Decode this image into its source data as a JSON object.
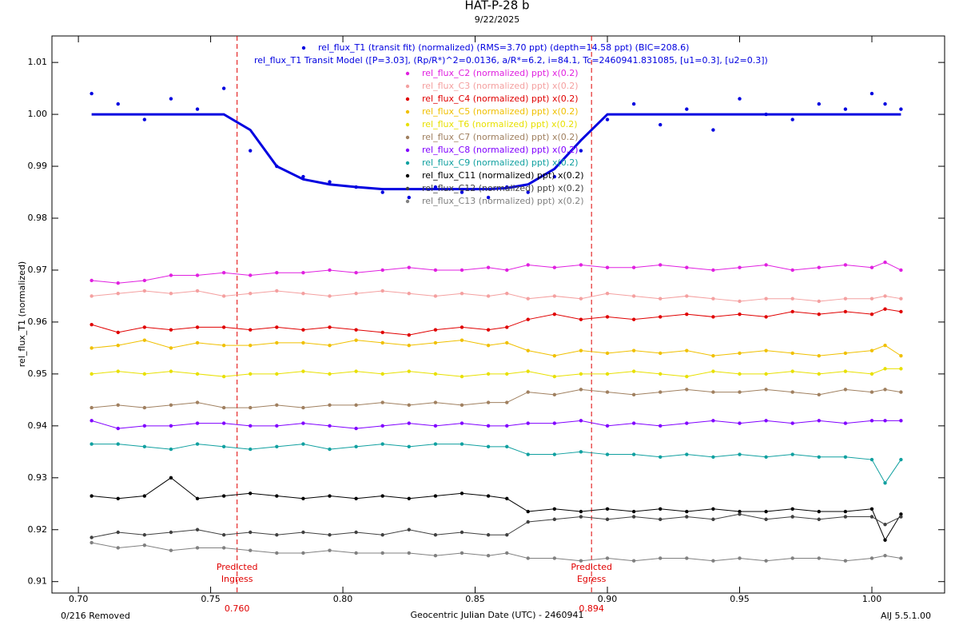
{
  "chart_data": {
    "type": "line",
    "title": "HAT-P-28 b",
    "subtitle": "9/22/2025",
    "x_label": "Geocentric Julian Date (UTC) - 2460941",
    "y_label": "rel_flux_T1 (normalized)",
    "footer_left": "0/216 Removed",
    "footer_right": "AIJ 5.5.1.00",
    "xlim": [
      0.69,
      1.0275
    ],
    "ylim": [
      0.9078,
      1.0151
    ],
    "xticks": [
      {
        "value": 0.7,
        "label": "0.70"
      },
      {
        "value": 0.75,
        "label": "0.75"
      },
      {
        "value": 0.8,
        "label": "0.80"
      },
      {
        "value": 0.85,
        "label": "0.85"
      },
      {
        "value": 0.9,
        "label": "0.90"
      },
      {
        "value": 0.95,
        "label": "0.95"
      },
      {
        "value": 1.0,
        "label": "1.00"
      }
    ],
    "yticks": [
      0.91,
      0.92,
      0.93,
      0.94,
      0.95,
      0.96,
      0.97,
      0.98,
      0.99,
      {
        "value": 1.0,
        "label": "1.00"
      },
      1.01
    ],
    "annotations": [
      {
        "x": 0.76,
        "x_label": "0.760",
        "lines": [
          "Predicted",
          "Ingress"
        ],
        "color": "#e00000"
      },
      {
        "x": 0.894,
        "x_label": "0.894",
        "lines": [
          "Predicted",
          "Egress"
        ],
        "color": "#e00000"
      }
    ],
    "x": [
      0.705,
      0.715,
      0.725,
      0.735,
      0.745,
      0.755,
      0.765,
      0.775,
      0.785,
      0.795,
      0.805,
      0.815,
      0.825,
      0.835,
      0.845,
      0.855,
      0.862,
      0.87,
      0.88,
      0.89,
      0.9,
      0.91,
      0.92,
      0.93,
      0.94,
      0.95,
      0.96,
      0.97,
      0.98,
      0.99,
      1.0,
      1.005,
      1.011
    ],
    "series": [
      {
        "name": "rel_flux_T1 (transit fit) (normalized) (RMS=3.70 ppt) (depth=14.58 ppt) (BIC=208.6)",
        "color": "#0000e0",
        "style": "markers",
        "legend_marker": true,
        "values": [
          1.004,
          1.002,
          0.999,
          1.003,
          1.001,
          1.005,
          0.993,
          0.99,
          0.988,
          0.987,
          0.986,
          0.985,
          0.984,
          0.986,
          0.985,
          0.984,
          0.986,
          0.985,
          0.988,
          0.993,
          0.999,
          1.002,
          0.998,
          1.001,
          0.997,
          1.003,
          1.0,
          0.999,
          1.002,
          1.001,
          1.004,
          1.002,
          1.001
        ]
      },
      {
        "name": "rel_flux_T1 Transit Model ([P=3.03], (Rp/R*)^2=0.0136, a/R*=6.2, i=84.1, Tc=2460941.831085, [u1=0.3], [u2=0.3])",
        "color": "#0000e0",
        "style": "line",
        "legend_marker": false,
        "values": [
          1,
          1,
          1,
          1,
          1,
          1,
          0.997,
          0.99,
          0.9875,
          0.9865,
          0.986,
          0.9856,
          0.9856,
          0.9856,
          0.9856,
          0.9856,
          0.9858,
          0.9865,
          0.9895,
          0.995,
          1,
          1,
          1,
          1,
          1,
          1,
          1,
          1,
          1,
          1,
          1,
          1,
          1
        ]
      },
      {
        "name": "rel_flux_C2 (normalized) ppt) x(0.2)",
        "color": "#e020e0",
        "style": "line-markers",
        "legend_marker": true,
        "values": [
          0.968,
          0.9675,
          0.968,
          0.969,
          0.969,
          0.9695,
          0.969,
          0.9695,
          0.9695,
          0.97,
          0.9695,
          0.97,
          0.9705,
          0.97,
          0.97,
          0.9705,
          0.97,
          0.971,
          0.9705,
          0.971,
          0.9705,
          0.9705,
          0.971,
          0.9705,
          0.97,
          0.9705,
          0.971,
          0.97,
          0.9705,
          0.971,
          0.9705,
          0.9715,
          0.97
        ]
      },
      {
        "name": "rel_flux_C3 (normalized) ppt) x(0.2)",
        "color": "#f4a0a0",
        "style": "line-markers",
        "legend_marker": true,
        "values": [
          0.965,
          0.9655,
          0.966,
          0.9655,
          0.966,
          0.965,
          0.9655,
          0.966,
          0.9655,
          0.965,
          0.9655,
          0.966,
          0.9655,
          0.965,
          0.9655,
          0.965,
          0.9655,
          0.9645,
          0.965,
          0.9645,
          0.9655,
          0.965,
          0.9645,
          0.965,
          0.9645,
          0.964,
          0.9645,
          0.9645,
          0.964,
          0.9645,
          0.9645,
          0.965,
          0.9645
        ]
      },
      {
        "name": "rel_flux_C4 (normalized) ppt) x(0.2)",
        "color": "#e00000",
        "style": "line-markers",
        "legend_marker": true,
        "values": [
          0.9595,
          0.958,
          0.959,
          0.9585,
          0.959,
          0.959,
          0.9585,
          0.959,
          0.9585,
          0.959,
          0.9585,
          0.958,
          0.9575,
          0.9585,
          0.959,
          0.9585,
          0.959,
          0.9605,
          0.9615,
          0.9605,
          0.961,
          0.9605,
          0.961,
          0.9615,
          0.961,
          0.9615,
          0.961,
          0.962,
          0.9615,
          0.962,
          0.9615,
          0.9625,
          0.962
        ]
      },
      {
        "name": "rel_flux_C5 (normalized) ppt) x(0.2)",
        "color": "#f0c000",
        "style": "line-markers",
        "legend_marker": true,
        "values": [
          0.955,
          0.9555,
          0.9565,
          0.955,
          0.956,
          0.9555,
          0.9555,
          0.956,
          0.956,
          0.9555,
          0.9565,
          0.956,
          0.9555,
          0.956,
          0.9565,
          0.9555,
          0.956,
          0.9545,
          0.9535,
          0.9545,
          0.954,
          0.9545,
          0.954,
          0.9545,
          0.9535,
          0.954,
          0.9545,
          0.954,
          0.9535,
          0.954,
          0.9545,
          0.9555,
          0.9535
        ]
      },
      {
        "name": "rel_flux_T6 (normalized) ppt) x(0.2)",
        "color": "#e8e000",
        "style": "line-markers",
        "legend_marker": true,
        "values": [
          0.95,
          0.9505,
          0.95,
          0.9505,
          0.95,
          0.9495,
          0.95,
          0.95,
          0.9505,
          0.95,
          0.9505,
          0.95,
          0.9505,
          0.95,
          0.9495,
          0.95,
          0.95,
          0.9505,
          0.9495,
          0.95,
          0.95,
          0.9505,
          0.95,
          0.9495,
          0.9505,
          0.95,
          0.95,
          0.9505,
          0.95,
          0.9505,
          0.95,
          0.951,
          0.951
        ]
      },
      {
        "name": "rel_flux_C7 (normalized) ppt) x(0.2)",
        "color": "#a08060",
        "style": "line-markers",
        "legend_marker": true,
        "values": [
          0.9435,
          0.944,
          0.9435,
          0.944,
          0.9445,
          0.9435,
          0.9435,
          0.944,
          0.9435,
          0.944,
          0.944,
          0.9445,
          0.944,
          0.9445,
          0.944,
          0.9445,
          0.9445,
          0.9465,
          0.946,
          0.947,
          0.9465,
          0.946,
          0.9465,
          0.947,
          0.9465,
          0.9465,
          0.947,
          0.9465,
          0.946,
          0.947,
          0.9465,
          0.947,
          0.9465
        ]
      },
      {
        "name": "rel_flux_C8 (normalized) ppt) x(0.2)",
        "color": "#8000ff",
        "style": "line-markers",
        "legend_marker": true,
        "values": [
          0.941,
          0.9395,
          0.94,
          0.94,
          0.9405,
          0.9405,
          0.94,
          0.94,
          0.9405,
          0.94,
          0.9395,
          0.94,
          0.9405,
          0.94,
          0.9405,
          0.94,
          0.94,
          0.9405,
          0.9405,
          0.941,
          0.94,
          0.9405,
          0.94,
          0.9405,
          0.941,
          0.9405,
          0.941,
          0.9405,
          0.941,
          0.9405,
          0.941,
          0.941,
          0.941
        ]
      },
      {
        "name": "rel_flux_C9 (normalized) ppt) x(0.2)",
        "color": "#10a0a0",
        "style": "line-markers",
        "legend_marker": true,
        "values": [
          0.9365,
          0.9365,
          0.936,
          0.9355,
          0.9365,
          0.936,
          0.9355,
          0.936,
          0.9365,
          0.9355,
          0.936,
          0.9365,
          0.936,
          0.9365,
          0.9365,
          0.936,
          0.936,
          0.9345,
          0.9345,
          0.935,
          0.9345,
          0.9345,
          0.934,
          0.9345,
          0.934,
          0.9345,
          0.934,
          0.9345,
          0.934,
          0.934,
          0.9335,
          0.929,
          0.9335
        ]
      },
      {
        "name": "rel_flux_C11 (normalized) ppt) x(0.2)",
        "color": "#000000",
        "style": "line-markers",
        "legend_marker": true,
        "values": [
          0.9265,
          0.926,
          0.9265,
          0.93,
          0.926,
          0.9265,
          0.927,
          0.9265,
          0.926,
          0.9265,
          0.926,
          0.9265,
          0.926,
          0.9265,
          0.927,
          0.9265,
          0.926,
          0.9235,
          0.924,
          0.9235,
          0.924,
          0.9235,
          0.924,
          0.9235,
          0.924,
          0.9235,
          0.9235,
          0.924,
          0.9235,
          0.9235,
          0.924,
          0.918,
          0.923
        ]
      },
      {
        "name": "rel_flux_C12 (normalized) ppt) x(0.2)",
        "color": "#404040",
        "style": "line-markers",
        "legend_marker": true,
        "values": [
          0.9185,
          0.9195,
          0.919,
          0.9195,
          0.92,
          0.919,
          0.9195,
          0.919,
          0.9195,
          0.919,
          0.9195,
          0.919,
          0.92,
          0.919,
          0.9195,
          0.919,
          0.919,
          0.9215,
          0.922,
          0.9225,
          0.922,
          0.9225,
          0.922,
          0.9225,
          0.922,
          0.923,
          0.922,
          0.9225,
          0.922,
          0.9225,
          0.9225,
          0.921,
          0.9225
        ]
      },
      {
        "name": "rel_flux_C13 (normalized) ppt) x(0.2)",
        "color": "#808080",
        "style": "line-markers",
        "legend_marker": true,
        "values": [
          0.9175,
          0.9165,
          0.917,
          0.916,
          0.9165,
          0.9165,
          0.916,
          0.9155,
          0.9155,
          0.916,
          0.9155,
          0.9155,
          0.9155,
          0.915,
          0.9155,
          0.915,
          0.9155,
          0.9145,
          0.9145,
          0.914,
          0.9145,
          0.914,
          0.9145,
          0.9145,
          0.914,
          0.9145,
          0.914,
          0.9145,
          0.9145,
          0.914,
          0.9145,
          0.915,
          0.9145
        ]
      }
    ]
  }
}
